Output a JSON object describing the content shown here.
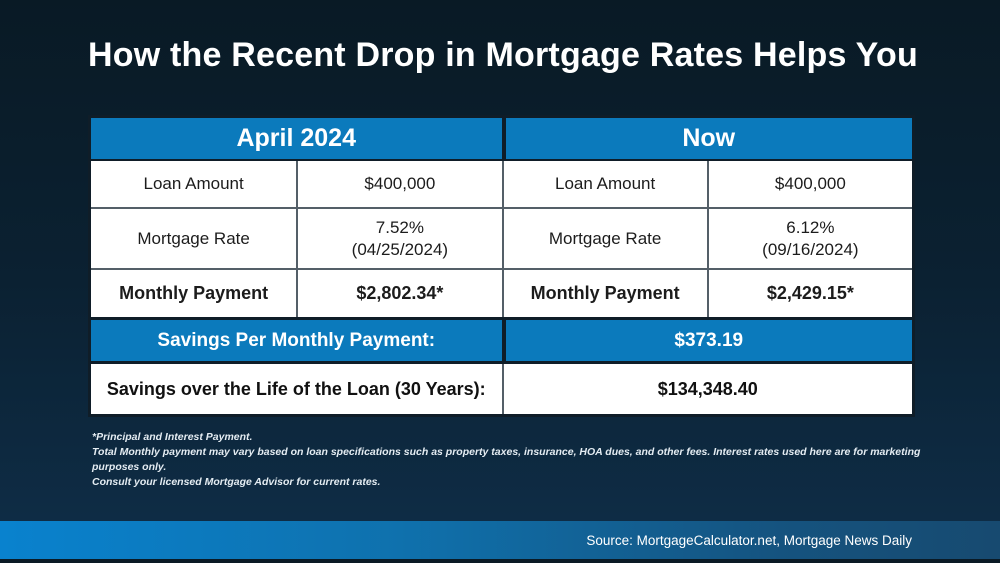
{
  "title": "How the Recent Drop in Mortgage Rates Helps You",
  "comparison": {
    "headers": [
      "April 2024",
      "Now"
    ],
    "rows": [
      {
        "cells": [
          {
            "t": "Loan Amount"
          },
          {
            "t": "$400,000"
          },
          {
            "t": "Loan Amount"
          },
          {
            "t": "$400,000"
          }
        ]
      },
      {
        "cells": [
          {
            "t": "Mortgage Rate"
          },
          {
            "t": "7.52%",
            "t2": "(04/25/2024)"
          },
          {
            "t": "Mortgage Rate"
          },
          {
            "t": "6.12%",
            "t2": "(09/16/2024)"
          }
        ]
      },
      {
        "cells": [
          {
            "t": "Monthly Payment"
          },
          {
            "t": "$2,802.34*"
          },
          {
            "t": "Monthly Payment"
          },
          {
            "t": "$2,429.15*"
          }
        ]
      }
    ]
  },
  "savings": {
    "monthly_label": "Savings Per Monthly Payment:",
    "monthly_value": "$373.19",
    "lifetime_label": "Savings over the Life of the Loan (30 Years):",
    "lifetime_value": "$134,348.40"
  },
  "footnotes": [
    "*Principal and Interest Payment.",
    "Total Monthly payment may vary based on loan specifications such as property taxes, insurance, HOA dues, and other fees. Interest rates used here are for marketing purposes only.",
    "Consult your licensed Mortgage Advisor for current rates."
  ],
  "footer": {
    "source": "Source: MortgageCalculator.net, Mortgage News Daily"
  },
  "colors": {
    "accent_blue": "#0b7abc",
    "footer_gradient_left": "#0982ce",
    "footer_gradient_right": "#174a70",
    "background_top": "#091a25",
    "background_bottom": "#0e2c45",
    "grid_line": "#545f68",
    "dark_border": "#0f1d28"
  },
  "chart_data": {
    "type": "table",
    "title": "How the Recent Drop in Mortgage Rates Helps You",
    "sections": [
      {
        "name": "April 2024",
        "loan_amount": 400000,
        "mortgage_rate_pct": 7.52,
        "rate_date": "04/25/2024",
        "monthly_payment": 2802.34
      },
      {
        "name": "Now",
        "loan_amount": 400000,
        "mortgage_rate_pct": 6.12,
        "rate_date": "09/16/2024",
        "monthly_payment": 2429.15
      }
    ],
    "savings_per_monthly_payment": 373.19,
    "savings_over_loan_life_30_years": 134348.4
  }
}
